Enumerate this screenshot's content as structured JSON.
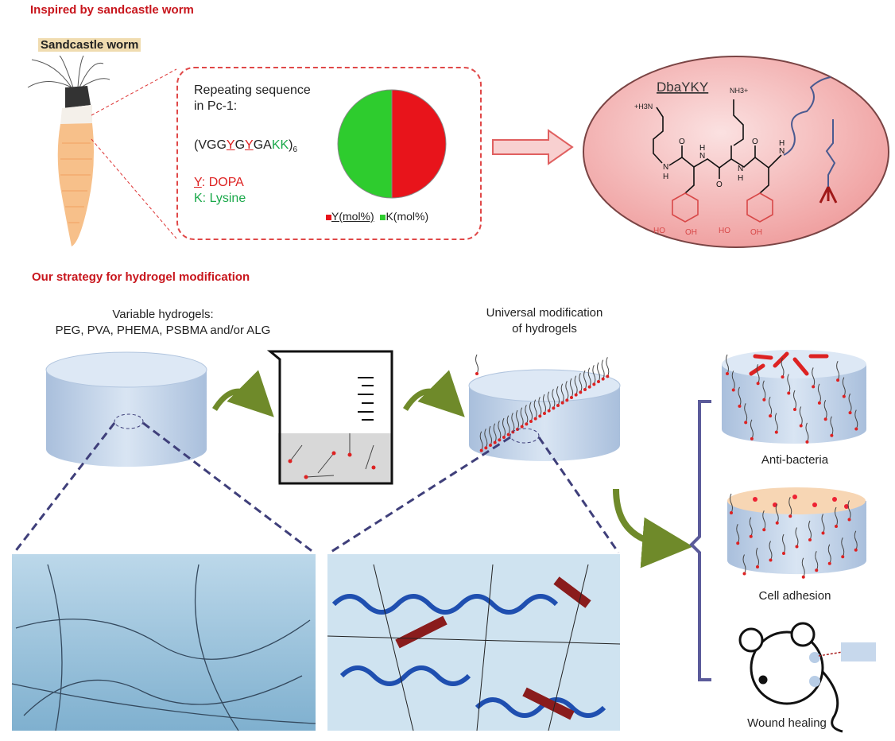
{
  "section1": {
    "title": "Inspired by sandcastle worm",
    "worm_label": "Sandcastle worm"
  },
  "sequence": {
    "heading_line1": "Repeating sequence",
    "heading_line2": "in Pc-1:",
    "seq_prefix": "(VGG",
    "seq_y1": "Y",
    "seq_g": "G",
    "seq_y2": "Y",
    "seq_ga": "GA",
    "seq_kk": "KK",
    "seq_close": ")",
    "seq_sub": "6",
    "legend_y_letter": "Y",
    "legend_y_text": ": DOPA",
    "legend_k_letter": "K",
    "legend_k_text": ": Lysine"
  },
  "chart_data": {
    "type": "pie",
    "values": [
      50,
      50
    ],
    "series": [
      {
        "name": "Y(mol%)",
        "value": 50,
        "color": "#e8141b"
      },
      {
        "name": "K(mol%)",
        "value": 50,
        "color": "#2ecc2e"
      }
    ],
    "legend_placement": "bottom"
  },
  "molecule": {
    "name": "DbaYKY",
    "nh3_left": "+H3N",
    "nh3_top": "NH3+",
    "ho1": "HO",
    "oh1": "OH",
    "ho2": "HO",
    "oh2": "OH",
    "o": "O",
    "n": "N",
    "h": "H"
  },
  "section2": {
    "title": "Our strategy for hydrogel modification",
    "variable_line1": "Variable hydrogels:",
    "variable_line2": "PEG, PVA, PHEMA, PSBMA and/or ALG",
    "universal_line1": "Universal modification",
    "universal_line2": "of hydrogels"
  },
  "applications": [
    {
      "label": "Anti-bacteria"
    },
    {
      "label": "Cell adhesion"
    },
    {
      "label": "Wound healing"
    }
  ],
  "colors": {
    "section_title": "#c8161d",
    "arrow_green": "#6f8a2a",
    "dashed_line": "#3f3f7a",
    "bracket": "#5b5b9a",
    "ellipse_fill": "#f6c4c4"
  }
}
